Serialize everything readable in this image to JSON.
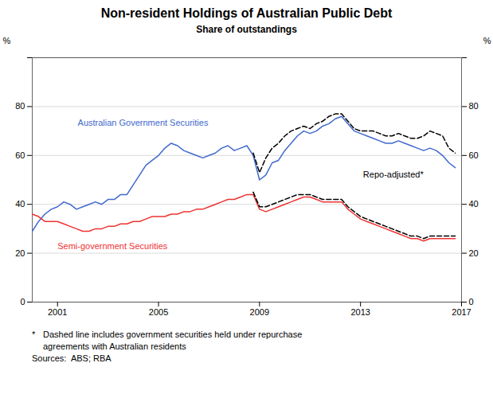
{
  "chart_data": {
    "type": "line",
    "title": "Non-resident Holdings of Australian Public Debt",
    "subtitle": "Share of outstandings",
    "ylabel": "%",
    "y2label": "%",
    "x": [
      2000.0,
      2000.25,
      2000.5,
      2000.75,
      2001.0,
      2001.25,
      2001.5,
      2001.75,
      2002.0,
      2002.25,
      2002.5,
      2002.75,
      2003.0,
      2003.25,
      2003.5,
      2003.75,
      2004.0,
      2004.25,
      2004.5,
      2004.75,
      2005.0,
      2005.25,
      2005.5,
      2005.75,
      2006.0,
      2006.25,
      2006.5,
      2006.75,
      2007.0,
      2007.25,
      2007.5,
      2007.75,
      2008.0,
      2008.25,
      2008.5,
      2008.75,
      2009.0,
      2009.25,
      2009.5,
      2009.75,
      2010.0,
      2010.25,
      2010.5,
      2010.75,
      2011.0,
      2011.25,
      2011.5,
      2011.75,
      2012.0,
      2012.25,
      2012.5,
      2012.75,
      2013.0,
      2013.25,
      2013.5,
      2013.75,
      2014.0,
      2014.25,
      2014.5,
      2014.75,
      2015.0,
      2015.25,
      2015.5,
      2015.75,
      2016.0,
      2016.25,
      2016.5,
      2016.75
    ],
    "series": [
      {
        "name": "Australian Government Securities",
        "color": "#4169CD",
        "line_style": "solid",
        "values": [
          29,
          33,
          36,
          38,
          39,
          41,
          40,
          38,
          39,
          40,
          41,
          40,
          42,
          42,
          44,
          44,
          48,
          52,
          56,
          58,
          60,
          63,
          65,
          64,
          62,
          61,
          60,
          59,
          60,
          61,
          63,
          64,
          62,
          63,
          64,
          60,
          50,
          52,
          57,
          58,
          62,
          65,
          68,
          70,
          69,
          70,
          72,
          73,
          75,
          76,
          73,
          70,
          69,
          68,
          67,
          66,
          65,
          65,
          66,
          65,
          64,
          63,
          62,
          63,
          62,
          60,
          57,
          55
        ]
      },
      {
        "name": "Semi-government Securities",
        "color": "#EE3333",
        "line_style": "solid",
        "values": [
          36,
          35,
          33,
          33,
          33,
          32,
          31,
          30,
          29,
          29,
          30,
          30,
          31,
          31,
          32,
          32,
          33,
          33,
          34,
          35,
          35,
          35,
          36,
          36,
          37,
          37,
          38,
          38,
          39,
          40,
          41,
          42,
          42,
          43,
          44,
          44,
          38,
          37,
          38,
          39,
          40,
          41,
          42,
          43,
          43,
          42,
          41,
          41,
          41,
          41,
          38,
          36,
          34,
          33,
          32,
          31,
          30,
          29,
          28,
          27,
          26,
          26,
          25,
          26,
          26,
          26,
          26,
          26
        ]
      },
      {
        "name": "Repo-adjusted*",
        "color": "#000000",
        "line_style": "dashed",
        "values": [
          null,
          null,
          null,
          null,
          null,
          null,
          null,
          null,
          null,
          null,
          null,
          null,
          null,
          null,
          null,
          null,
          null,
          null,
          null,
          null,
          null,
          null,
          null,
          null,
          null,
          null,
          null,
          null,
          null,
          null,
          null,
          null,
          null,
          null,
          null,
          61,
          53,
          59,
          63,
          65,
          68,
          70,
          71,
          72,
          71,
          73,
          74,
          76,
          77,
          77,
          74,
          71,
          70,
          70,
          70,
          69,
          68,
          68,
          69,
          68,
          67,
          67,
          68,
          70,
          69,
          68,
          63,
          61
        ]
      },
      {
        "name": "Repo-adjusted*",
        "color": "#000000",
        "line_style": "dashed",
        "values": [
          null,
          null,
          null,
          null,
          null,
          null,
          null,
          null,
          null,
          null,
          null,
          null,
          null,
          null,
          null,
          null,
          null,
          null,
          null,
          null,
          null,
          null,
          null,
          null,
          null,
          null,
          null,
          null,
          null,
          null,
          null,
          null,
          null,
          null,
          null,
          45,
          39,
          39,
          40,
          41,
          42,
          43,
          44,
          44,
          44,
          43,
          42,
          42,
          42,
          42,
          39,
          37,
          35,
          34,
          33,
          32,
          31,
          30,
          29,
          28,
          27,
          27,
          26,
          27,
          27,
          27,
          27,
          27
        ]
      }
    ],
    "xlim": [
      2000.0,
      2017.0
    ],
    "xticks": [
      2001,
      2005,
      2009,
      2013,
      2017
    ],
    "ylim": [
      0,
      100
    ],
    "yticks": [
      0,
      20,
      40,
      60,
      80,
      {
        "value": 100,
        "label": ""
      }
    ],
    "y2lim": [
      0,
      100
    ],
    "y2ticks": [
      0,
      20,
      40,
      60,
      80,
      {
        "value": 100,
        "label": ""
      }
    ],
    "grid": true,
    "annotations": [
      {
        "text": "Australian Government Securities",
        "x": 2001.8,
        "y": 72,
        "color": "#4169CD"
      },
      {
        "text": "Semi-government Securities",
        "x": 2001.0,
        "y": 21.5,
        "color": "#EE3333"
      },
      {
        "text": "Repo-adjusted*",
        "x": 2013.1,
        "y": 51,
        "color": "#000000"
      }
    ],
    "footnotes": [
      {
        "marker": "*",
        "lines": [
          "Dashed line includes government securities held under repurchase",
          "agreements with Australian residents"
        ]
      },
      {
        "lines": [
          "Sources:  ABS; RBA"
        ]
      }
    ]
  }
}
